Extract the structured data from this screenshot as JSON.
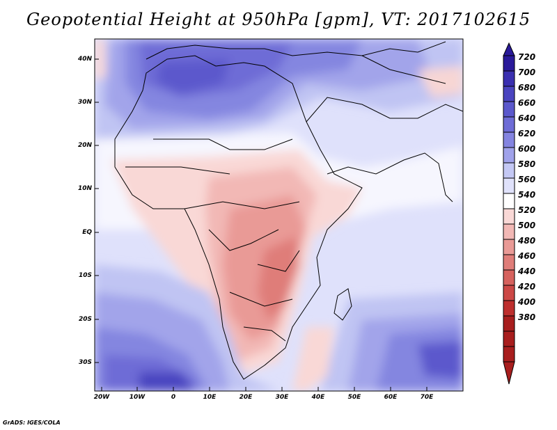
{
  "title": "Geopotential Height at 950hPa [gpm], VT: 2017102615",
  "variable": "Geopotential Height",
  "level": "950hPa",
  "units": "gpm",
  "valid_time": "2017102615",
  "lat_labels": [
    "40N",
    "30N",
    "20N",
    "10N",
    "EQ",
    "10S",
    "20S",
    "30S"
  ],
  "lon_labels": [
    "20W",
    "10W",
    "0",
    "10E",
    "20E",
    "30E",
    "40E",
    "50E",
    "60E",
    "70E"
  ],
  "colorbar": {
    "levels": [
      720,
      700,
      680,
      660,
      640,
      620,
      600,
      580,
      560,
      540,
      520,
      500,
      480,
      460,
      440,
      420,
      400,
      380
    ],
    "colors": {
      "700": "#2a1a9a",
      "680": "#3a2fb0",
      "660": "#4a44c0",
      "640": "#5b58cc",
      "620": "#6e6cd6",
      "600": "#8484e0",
      "580": "#a0a2ea",
      "560": "#c4c8f4",
      "540": "#e0e2fb",
      "520": "#ffffff",
      "500": "#f9d8d6",
      "480": "#f2b8b5",
      "460": "#e99a96",
      "440": "#df7d79",
      "420": "#d6625e",
      "400": "#cc4846",
      "380": "#be2f2e",
      "360": "#a81e1e"
    }
  },
  "credit": "GrADS: IGES/COLA"
}
